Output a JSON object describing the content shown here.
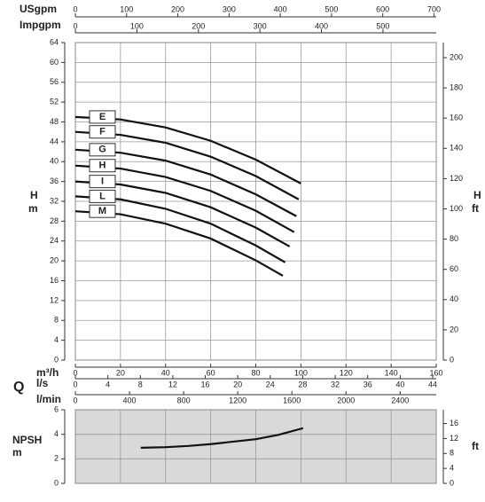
{
  "chart_data": [
    {
      "type": "line",
      "ylabel": "H",
      "ylabel_unit": "m",
      "y2label": "H",
      "y2label_unit": "ft",
      "ylim": [
        0,
        64
      ],
      "yticks": [
        0,
        4,
        8,
        12,
        16,
        20,
        24,
        28,
        32,
        36,
        40,
        44,
        48,
        52,
        56,
        60,
        64
      ],
      "y2lim": [
        0,
        209.97
      ],
      "y2ticks": [
        0,
        20,
        40,
        60,
        80,
        100,
        120,
        140,
        160,
        180,
        200
      ],
      "xlim": [
        0,
        160
      ],
      "grid": true,
      "top_axes": [
        {
          "label": "USgpm",
          "lim": [
            0,
            704.4
          ],
          "ticks": [
            0,
            100,
            200,
            300,
            400,
            500,
            600,
            700
          ]
        },
        {
          "label": "Impgpm",
          "lim": [
            0,
            586.6
          ],
          "ticks": [
            0,
            100,
            200,
            300,
            400,
            500
          ]
        }
      ],
      "q_label": "Q",
      "bottom_axes": [
        {
          "label": "m³/h",
          "lim": [
            0,
            160
          ],
          "ticks": [
            0,
            20,
            40,
            60,
            80,
            100,
            120,
            140,
            160
          ]
        },
        {
          "label": "l/s",
          "lim": [
            0,
            44.44
          ],
          "ticks": [
            0,
            4,
            8,
            12,
            16,
            20,
            24,
            28,
            32,
            36,
            40,
            44
          ]
        },
        {
          "label": "l/min",
          "lim": [
            0,
            2666.7
          ],
          "ticks": [
            0,
            400,
            800,
            1200,
            1600,
            2000,
            2400
          ]
        }
      ],
      "series": [
        {
          "name": "E",
          "color": "#111111",
          "x": [
            0,
            20,
            40,
            60,
            80,
            100
          ],
          "values": [
            49,
            48.5,
            46.9,
            44.2,
            40.4,
            35.6
          ]
        },
        {
          "name": "F",
          "color": "#111111",
          "x": [
            0,
            20,
            40,
            60,
            80,
            99
          ],
          "values": [
            46,
            45.4,
            43.8,
            41.0,
            37.1,
            32.4
          ]
        },
        {
          "name": "G",
          "color": "#111111",
          "x": [
            0,
            20,
            40,
            60,
            80,
            98
          ],
          "values": [
            42.4,
            41.8,
            40.2,
            37.4,
            33.4,
            29.0
          ]
        },
        {
          "name": "H",
          "color": "#111111",
          "x": [
            0,
            20,
            40,
            60,
            80,
            97
          ],
          "values": [
            39.2,
            38.6,
            36.9,
            34.1,
            30.1,
            25.8
          ]
        },
        {
          "name": "I",
          "color": "#111111",
          "x": [
            0,
            20,
            40,
            60,
            80,
            95
          ],
          "values": [
            36,
            35.4,
            33.7,
            30.8,
            26.7,
            22.9
          ]
        },
        {
          "name": "L",
          "color": "#111111",
          "x": [
            0,
            20,
            40,
            60,
            80,
            93
          ],
          "values": [
            33,
            32.4,
            30.5,
            27.5,
            23.1,
            19.7
          ]
        },
        {
          "name": "M",
          "color": "#111111",
          "x": [
            0,
            20,
            40,
            60,
            80,
            92
          ],
          "values": [
            30,
            29.4,
            27.5,
            24.5,
            20.1,
            17.0
          ]
        }
      ]
    },
    {
      "type": "line",
      "ylabel": "NPSH",
      "ylabel_unit": "m",
      "y2label_unit": "ft",
      "ylim": [
        0,
        6
      ],
      "yticks": [
        0,
        2,
        4,
        6
      ],
      "y2lim": [
        0,
        19.685
      ],
      "y2ticks": [
        0,
        4,
        8,
        12,
        16
      ],
      "xlim": [
        0,
        160
      ],
      "grid": true,
      "series": [
        {
          "color": "#111111",
          "x": [
            29,
            40,
            50,
            60,
            70,
            80,
            90,
            101
          ],
          "values": [
            2.9,
            2.95,
            3.05,
            3.2,
            3.4,
            3.6,
            3.95,
            4.5
          ]
        }
      ]
    }
  ]
}
